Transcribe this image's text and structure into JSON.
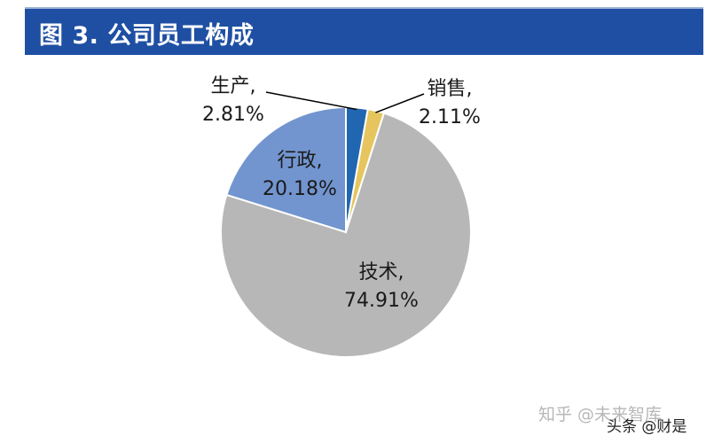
{
  "header": {
    "title": "图 3. 公司员工构成"
  },
  "chart_data": {
    "type": "pie",
    "title": "图 3. 公司员工构成",
    "slices": [
      {
        "name": "生产",
        "value": 2.81,
        "label_value": "2.81%",
        "color": "#2166b0"
      },
      {
        "name": "销售",
        "value": 2.11,
        "label_value": "2.11%",
        "color": "#e6c55e"
      },
      {
        "name": "技术",
        "value": 74.91,
        "label_value": "74.91%",
        "color": "#b7b7b7"
      },
      {
        "name": "行政",
        "value": 20.18,
        "label_value": "20.18%",
        "color": "#7295cf"
      }
    ],
    "start": "top",
    "direction": "clockwise",
    "legend": "none"
  },
  "watermarks": {
    "zhihu": "知乎 @未来智库",
    "toutiao": "头条 @财是"
  }
}
